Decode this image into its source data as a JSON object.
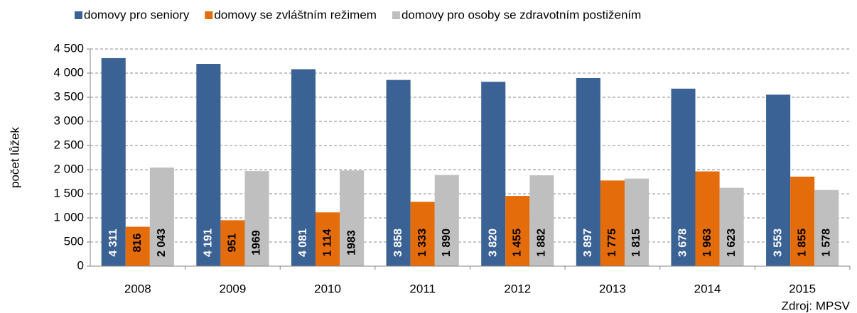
{
  "chart_data": {
    "type": "bar",
    "categories": [
      "2008",
      "2009",
      "2010",
      "2011",
      "2012",
      "2013",
      "2014",
      "2015"
    ],
    "series": [
      {
        "name": "domovy pro seniory",
        "color": "#3b6294",
        "label_color": "#ffffff",
        "values": [
          4311,
          4191,
          4081,
          3858,
          3820,
          3897,
          3678,
          3553
        ],
        "value_labels": [
          "4 311",
          "4 191",
          "4 081",
          "3 858",
          "3 820",
          "3 897",
          "3 678",
          "3 553"
        ]
      },
      {
        "name": "domovy se zvláštním režimem",
        "color": "#e46c0a",
        "label_color": "#000000",
        "values": [
          816,
          951,
          1114,
          1333,
          1455,
          1775,
          1963,
          1855
        ],
        "value_labels": [
          "816",
          "951",
          "1 114",
          "1 333",
          "1 455",
          "1 775",
          "1 963",
          "1 855"
        ]
      },
      {
        "name": "domovy pro osoby se zdravotním postižením",
        "color": "#bfbfbf",
        "label_color": "#000000",
        "values": [
          2043,
          1969,
          1983,
          1890,
          1882,
          1815,
          1623,
          1578
        ],
        "value_labels": [
          "2 043",
          "1969",
          "1983",
          "1 890",
          "1 882",
          "1 815",
          "1 623",
          "1 578"
        ]
      }
    ],
    "ylabel": "počet lůžek",
    "source": "Zdroj: MPSV",
    "ylim": [
      0,
      4500
    ],
    "yticks": [
      0,
      500,
      {
        "value": 1000,
        "label": "1 000"
      },
      {
        "value": 1500,
        "label": "1 500"
      },
      {
        "value": 2000,
        "label": "2 000"
      },
      {
        "value": 2500,
        "label": "2 500"
      },
      {
        "value": 3000,
        "label": "3 000"
      },
      {
        "value": 3500,
        "label": "3 500"
      },
      {
        "value": 4000,
        "label": "4 000"
      },
      {
        "value": 4500,
        "label": "4 500"
      }
    ],
    "grid": true,
    "legend": "top"
  }
}
